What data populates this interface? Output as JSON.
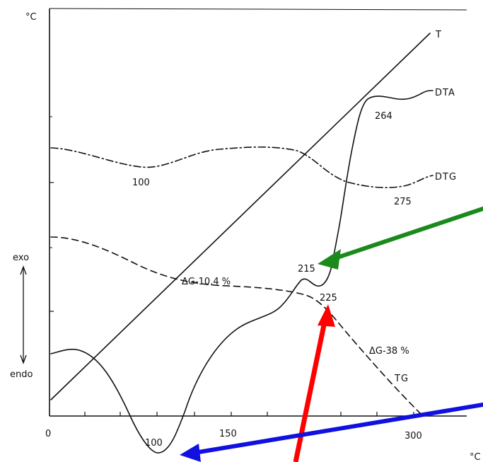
{
  "chart_data": {
    "type": "line",
    "title": "",
    "x_unit": "°C",
    "y_unit": "°C",
    "x_ticks": [
      "0",
      "150",
      "300"
    ],
    "xlim": [
      0,
      300
    ],
    "axis_side_labels": {
      "top": "exo",
      "bottom": "endo"
    },
    "series": [
      {
        "name": "T",
        "style": "solid"
      },
      {
        "name": "DTA",
        "style": "solid"
      },
      {
        "name": "DTG",
        "style": "dash-dot"
      },
      {
        "name": "TG",
        "style": "dashed"
      }
    ],
    "annotations": {
      "dta_min": "100",
      "dta_peak_1": "215",
      "dta_peak_2": "264",
      "dtg_min_1": "100",
      "dtg_min_2": "275",
      "tg_point": "225",
      "tg_loss_1": "ΔG-10,4 %",
      "tg_loss_2": "ΔG-38 %"
    },
    "arrow_colors": {
      "green": "#1a8a1a",
      "red": "#ff0000",
      "blue": "#1010e0"
    }
  }
}
